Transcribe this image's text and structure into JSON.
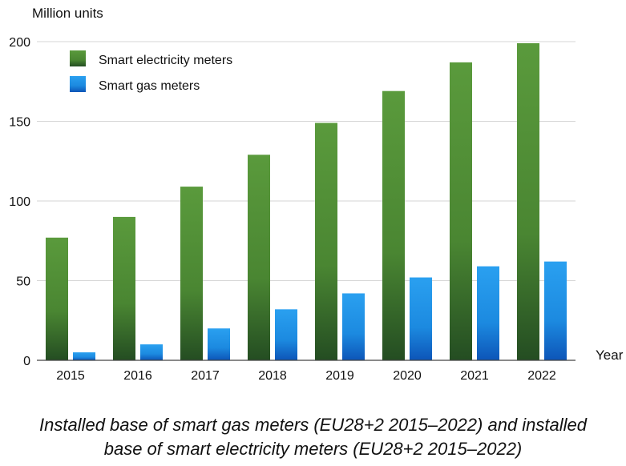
{
  "chart_data": {
    "type": "bar",
    "ylabel": "Million units",
    "xlabel": "Year",
    "ylim": [
      0,
      200
    ],
    "yticks": [
      0,
      50,
      100,
      150,
      200
    ],
    "grid": true,
    "legend_position": "top-left",
    "categories": [
      "2015",
      "2016",
      "2017",
      "2018",
      "2019",
      "2020",
      "2021",
      "2022"
    ],
    "series": [
      {
        "name": "Smart electricity meters",
        "color": "#4f8a34",
        "values": [
          77,
          90,
          109,
          129,
          149,
          169,
          187,
          199
        ]
      },
      {
        "name": "Smart gas meters",
        "color": "#1e90e0",
        "values": [
          5,
          10,
          20,
          32,
          42,
          52,
          59,
          62
        ]
      }
    ]
  },
  "caption": {
    "line1": "Installed base of smart gas meters (EU28+2 2015–2022) and installed",
    "line2": "base of smart electricity meters (EU28+2 2015–2022)"
  }
}
